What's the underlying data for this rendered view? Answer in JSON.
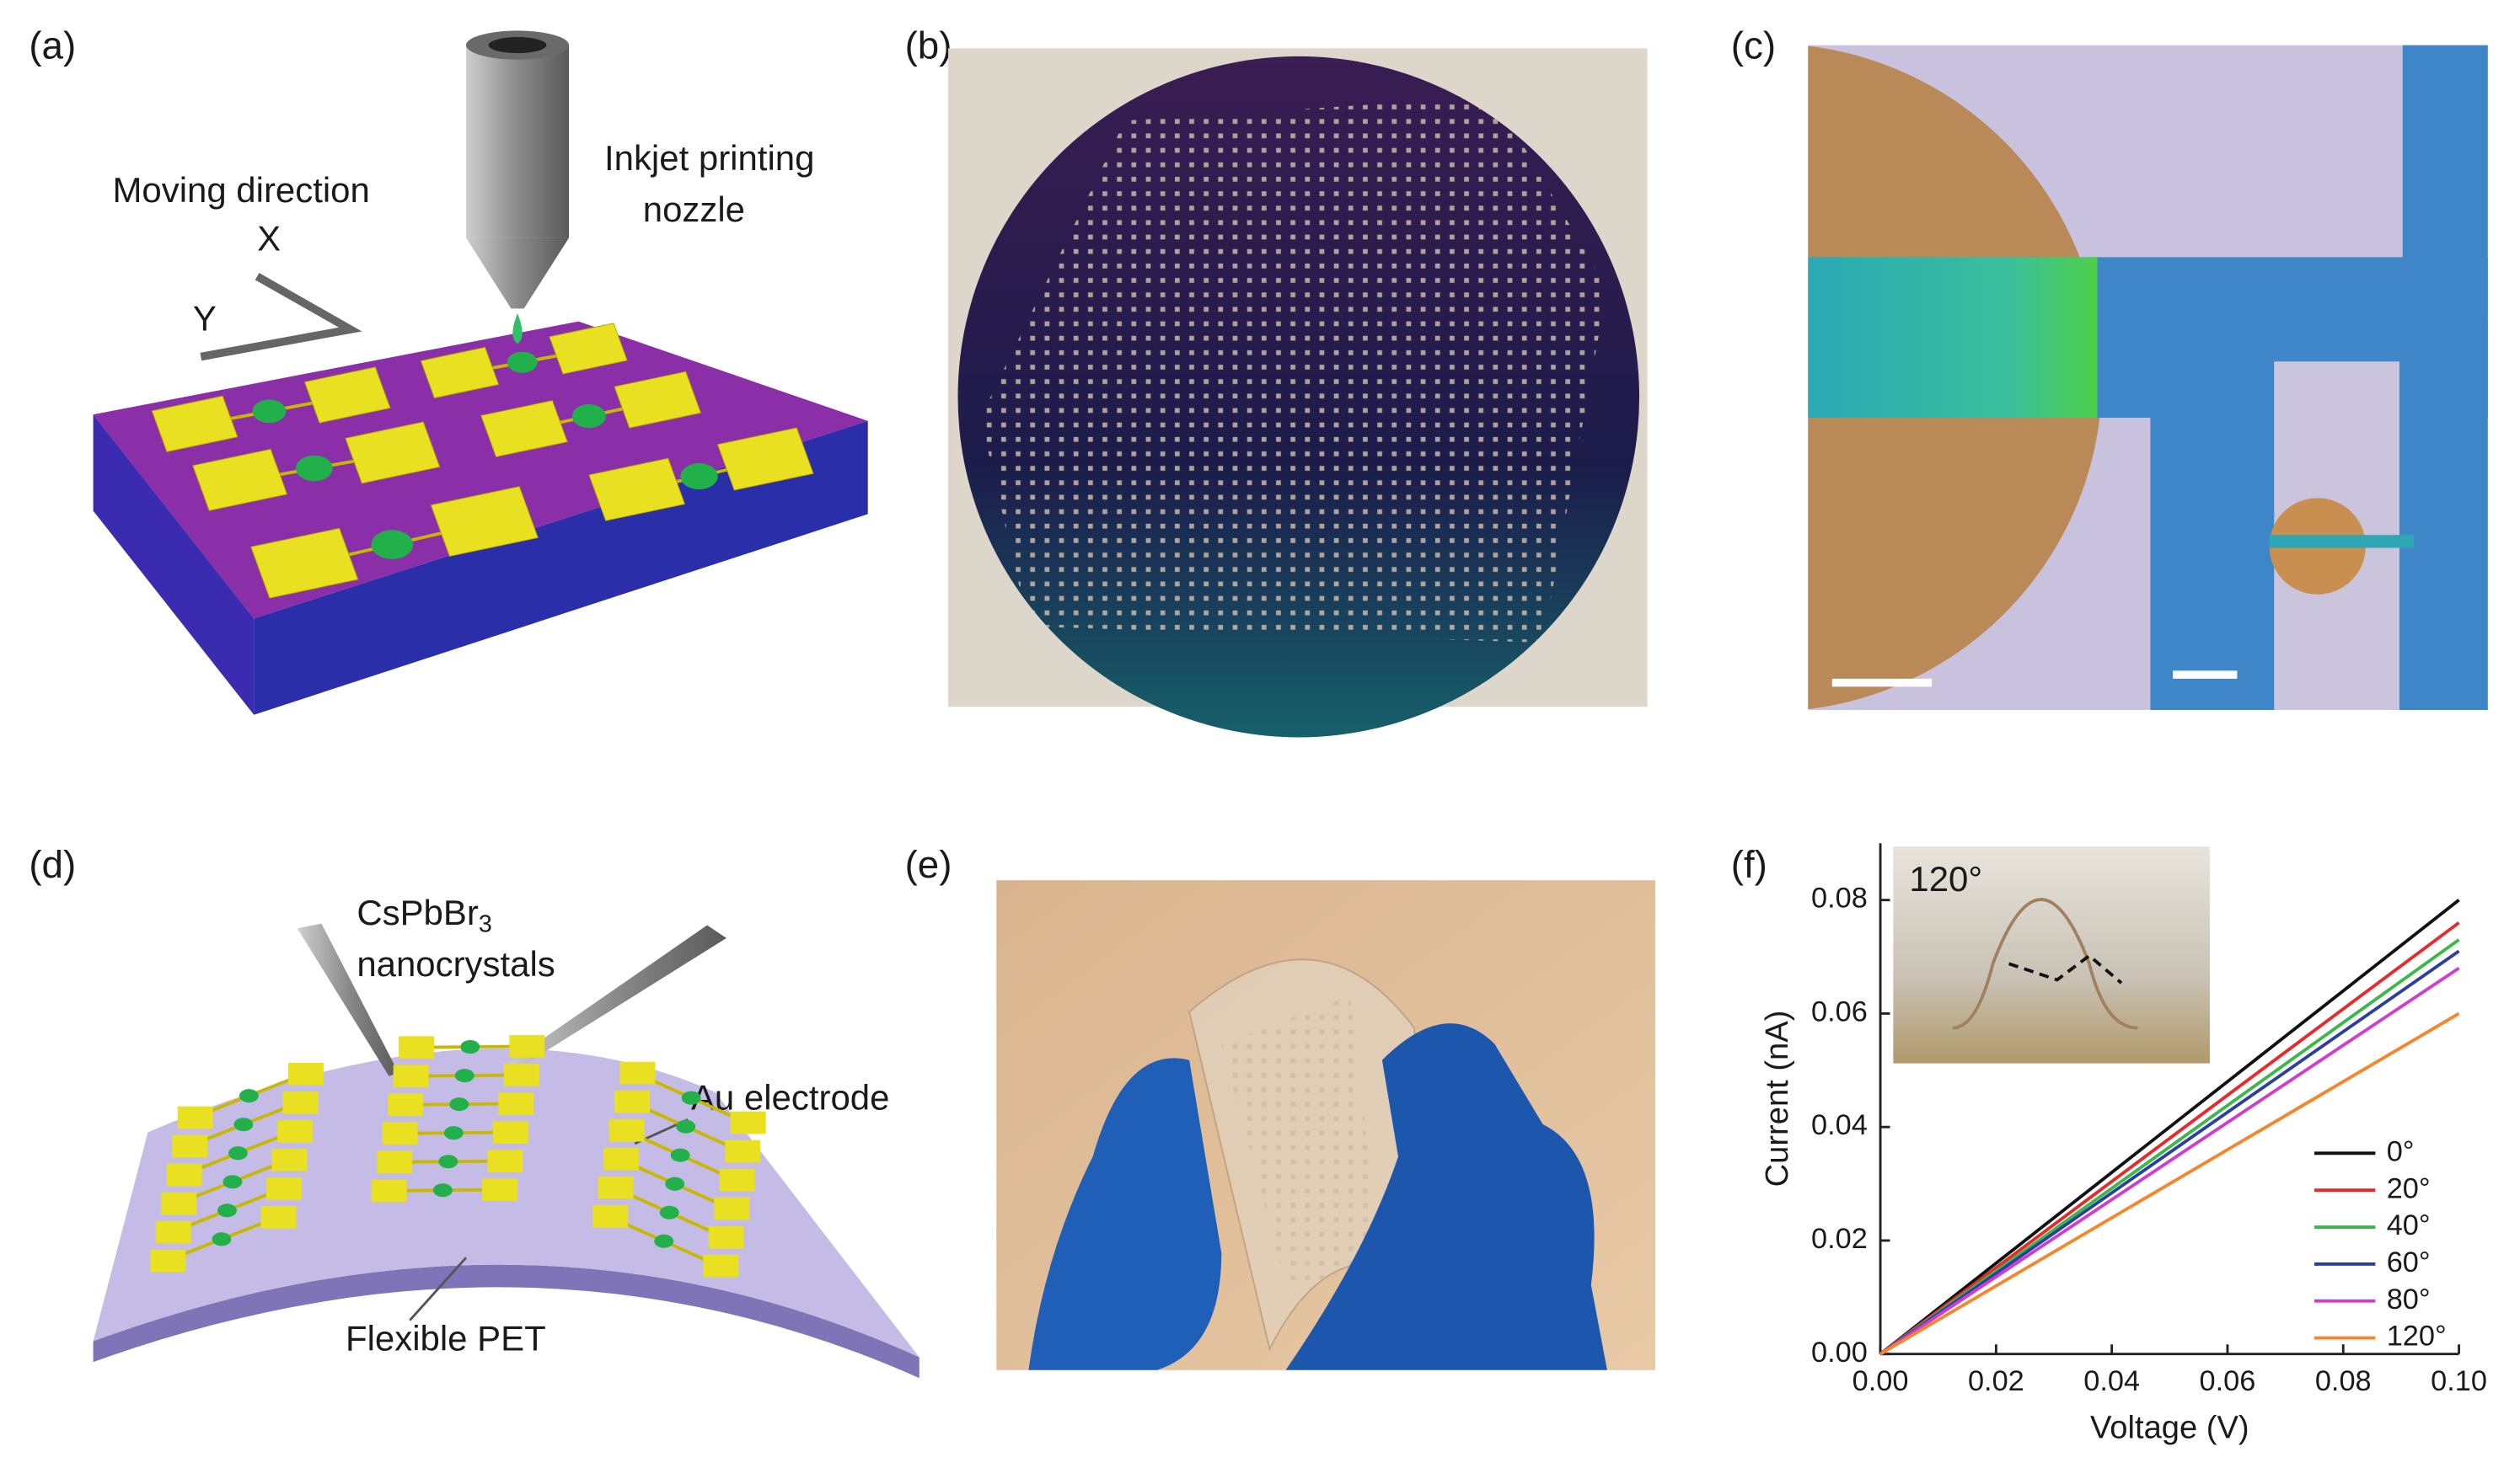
{
  "panel_labels": [
    "(a)",
    "(b)",
    "(c)",
    "(d)",
    "(e)",
    "(f)"
  ],
  "panel_a": {
    "direction_label": "Moving direction",
    "x_axis": "X",
    "y_axis": "Y",
    "nozzle_label_1": "Inkjet printing",
    "nozzle_label_2": "nozzle"
  },
  "panel_d": {
    "ink_main": "CsPbBr",
    "ink_sub": "3",
    "ink_label_2": "nanocrystals",
    "electrode_label": "Au electrode",
    "substrate_label": "Flexible PET"
  },
  "chart_data": {
    "type": "line",
    "x_label": "Voltage (V)",
    "y_label": "Current (nA)",
    "inset_label": "120°",
    "x": [
      0,
      0.1
    ],
    "series": [
      {
        "name": "0°",
        "color": "#111111",
        "values": [
          0,
          0.08
        ]
      },
      {
        "name": "20°",
        "color": "#e8292b",
        "values": [
          0,
          0.076
        ]
      },
      {
        "name": "40°",
        "color": "#3cb84a",
        "values": [
          0,
          0.073
        ]
      },
      {
        "name": "60°",
        "color": "#2b3fa0",
        "values": [
          0,
          0.071
        ]
      },
      {
        "name": "80°",
        "color": "#d13ccd",
        "values": [
          0,
          0.068
        ]
      },
      {
        "name": "120°",
        "color": "#f5862a",
        "values": [
          0,
          0.06
        ]
      }
    ],
    "xlim": [
      0,
      0.1
    ],
    "ylim": [
      0,
      0.09
    ],
    "xticks": [
      {
        "value": 0,
        "label": "0.00"
      },
      {
        "value": 0.02,
        "label": "0.02"
      },
      {
        "value": 0.04,
        "label": "0.04"
      },
      {
        "value": 0.06,
        "label": "0.06"
      },
      {
        "value": 0.08,
        "label": "0.08"
      },
      {
        "value": 0.1,
        "label": "0.10"
      }
    ],
    "yticks": [
      {
        "value": 0,
        "label": "0.00"
      },
      {
        "value": 0.02,
        "label": "0.02"
      },
      {
        "value": 0.04,
        "label": "0.04"
      },
      {
        "value": 0.06,
        "label": "0.06"
      },
      {
        "value": 0.08,
        "label": "0.08"
      }
    ],
    "legend": "lower right"
  }
}
